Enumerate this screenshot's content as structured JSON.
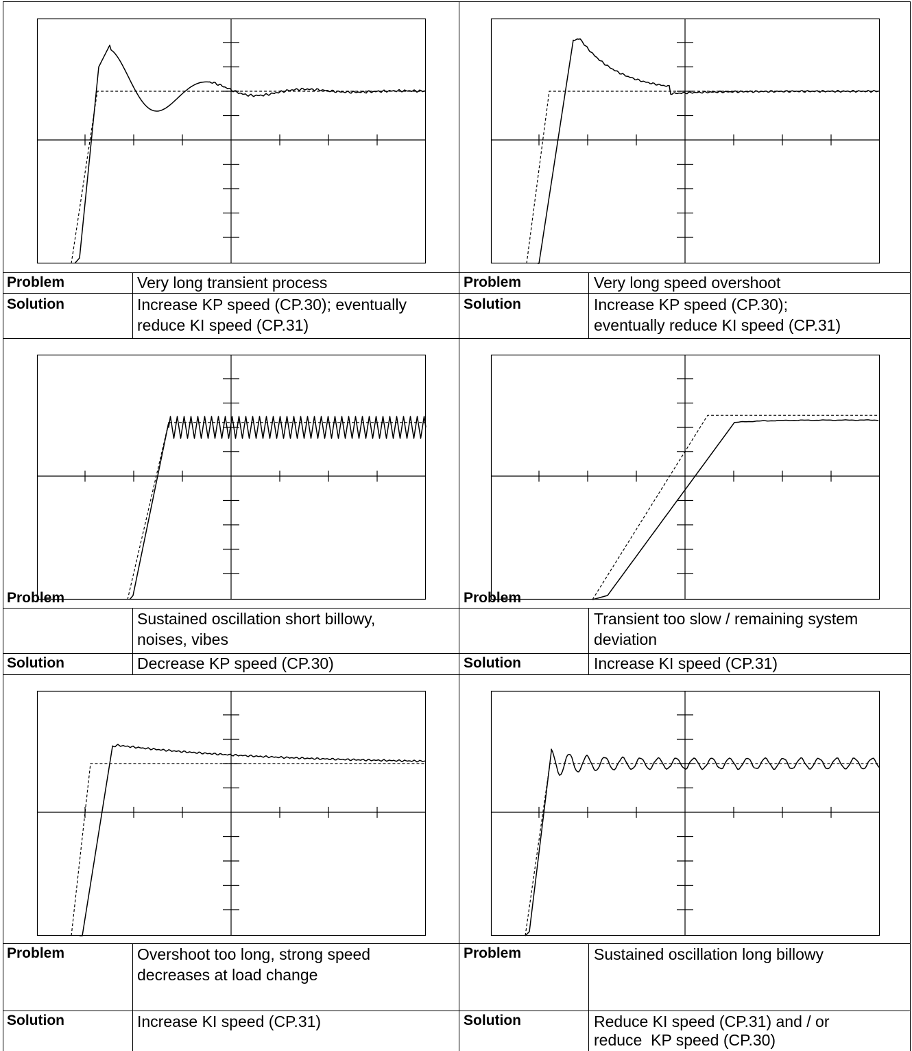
{
  "table": {
    "cells": [
      {
        "problem_label": "Problem",
        "problem_lines": [
          "Very long transient process"
        ],
        "solution_label": "Solution",
        "solution_lines": [
          "Increase KP speed (CP.30); eventually",
          "reduce KI speed (CP.31)"
        ]
      },
      {
        "problem_label": "Problem",
        "problem_lines": [
          "Very long speed overshoot"
        ],
        "solution_label": "Solution",
        "solution_lines": [
          "Increase KP speed (CP.30);",
          "eventually reduce KI speed (CP.31)"
        ]
      },
      {
        "problem_label": "Problem",
        "problem_lines": [
          "Sustained oscillation short billowy,",
          "noises, vibes"
        ],
        "solution_label": "Solution",
        "solution_lines": [
          "Decrease KP speed (CP.30)"
        ]
      },
      {
        "problem_label": "Problem",
        "problem_lines": [
          "Transient too slow / remaining system",
          "deviation"
        ],
        "solution_label": "Solution",
        "solution_lines": [
          "Increase KI speed (CP.31)"
        ]
      },
      {
        "problem_label": "Problem",
        "problem_lines": [
          "Overshoot too long, strong speed",
          "decreases at load change"
        ],
        "solution_label": "Solution",
        "solution_lines": [
          "Increase KI speed (CP.31)"
        ]
      },
      {
        "problem_label": "Problem",
        "problem_lines": [
          "Sustained oscillation long billowy"
        ],
        "solution_label": "Solution",
        "solution_lines": [
          "Reduce KI speed (CP.31) and / or",
          "reduce  KP speed (CP.30)"
        ]
      }
    ]
  },
  "chart_data": [
    {
      "type": "line",
      "series": [
        {
          "style": "solid",
          "color": "#000000"
        },
        {
          "style": "dashed",
          "color": "#000000"
        }
      ],
      "grid": false,
      "response": "damped-oscillation",
      "setpoint_level": 2
    },
    {
      "type": "line",
      "series": [
        {
          "style": "solid",
          "color": "#000000"
        },
        {
          "style": "dashed",
          "color": "#000000"
        }
      ],
      "grid": false,
      "response": "slow-overshoot",
      "setpoint_level": 2
    },
    {
      "type": "line",
      "series": [
        {
          "style": "solid",
          "color": "#000000"
        },
        {
          "style": "dashed",
          "color": "#000000"
        }
      ],
      "grid": false,
      "response": "sustained-high-frequency-oscillation",
      "setpoint_level": 2
    },
    {
      "type": "line",
      "series": [
        {
          "style": "solid",
          "color": "#000000"
        },
        {
          "style": "dashed",
          "color": "#000000"
        }
      ],
      "grid": false,
      "response": "slow-rise-with-offset",
      "setpoint_level": 2.5
    },
    {
      "type": "line",
      "series": [
        {
          "style": "solid",
          "color": "#000000"
        },
        {
          "style": "dashed",
          "color": "#000000"
        }
      ],
      "grid": false,
      "response": "long-overshoot",
      "setpoint_level": 2
    },
    {
      "type": "line",
      "series": [
        {
          "style": "solid",
          "color": "#000000"
        },
        {
          "style": "dashed",
          "color": "#000000"
        }
      ],
      "grid": false,
      "response": "sustained-low-frequency-oscillation",
      "setpoint_level": 2
    }
  ]
}
